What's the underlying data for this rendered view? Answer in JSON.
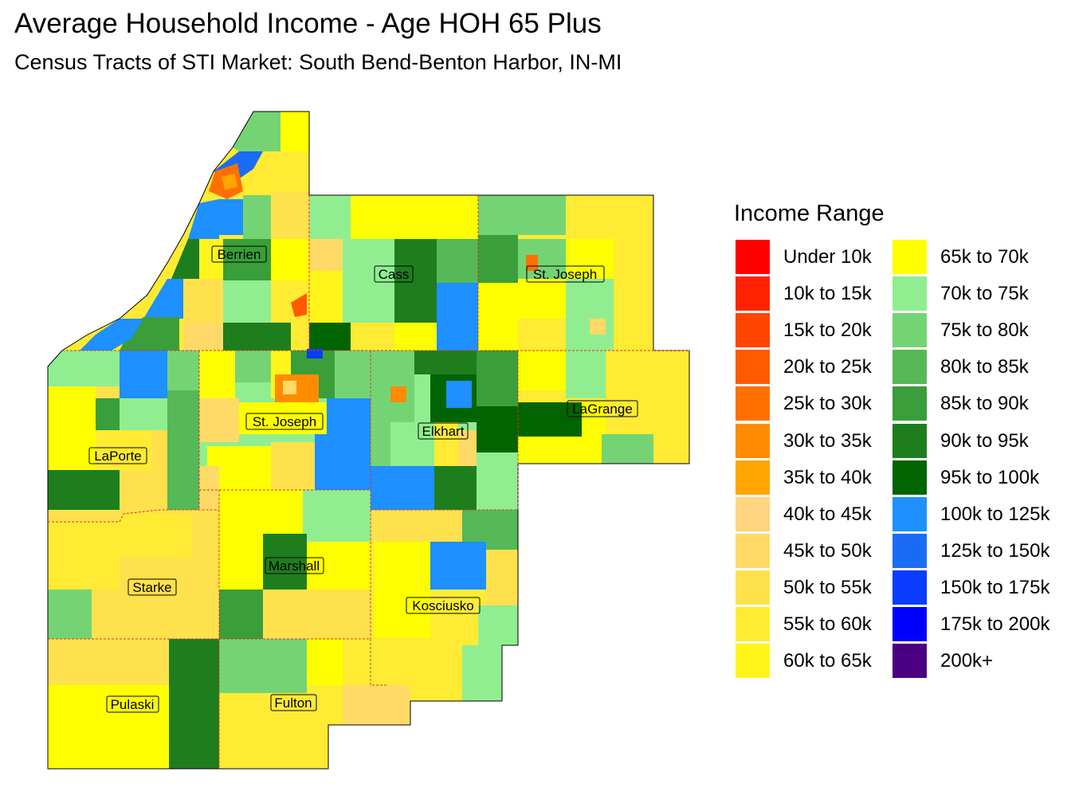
{
  "title": "Average Household Income - Age HOH 65 Plus",
  "subtitle": "Census Tracts of STI Market: South Bend-Benton Harbor, IN-MI",
  "legend": {
    "title": "Income Range",
    "items": [
      {
        "label": "Under 10k",
        "color": "#ff0000"
      },
      {
        "label": "10k to 15k",
        "color": "#ff2200"
      },
      {
        "label": "15k to 20k",
        "color": "#ff4400"
      },
      {
        "label": "20k to 25k",
        "color": "#ff5a00"
      },
      {
        "label": "25k to 30k",
        "color": "#ff7000"
      },
      {
        "label": "30k to 35k",
        "color": "#ff8c00"
      },
      {
        "label": "35k to 40k",
        "color": "#ffa500"
      },
      {
        "label": "40k to 45k",
        "color": "#ffd37f"
      },
      {
        "label": "45k to 50k",
        "color": "#ffda66"
      },
      {
        "label": "50k to 55k",
        "color": "#ffe14d"
      },
      {
        "label": "55k to 60k",
        "color": "#ffeb33"
      },
      {
        "label": "60k to 65k",
        "color": "#fff51a"
      },
      {
        "label": "65k to 70k",
        "color": "#ffff00"
      },
      {
        "label": "70k to 75k",
        "color": "#90ee90"
      },
      {
        "label": "75k to 80k",
        "color": "#74d474"
      },
      {
        "label": "80k to 85k",
        "color": "#56b856"
      },
      {
        "label": "85k to 90k",
        "color": "#3a9e3a"
      },
      {
        "label": "90k to 95k",
        "color": "#1e7e1e"
      },
      {
        "label": "95k to 100k",
        "color": "#006400"
      },
      {
        "label": "100k to 125k",
        "color": "#1e90ff"
      },
      {
        "label": "125k to 150k",
        "color": "#1a6cf5"
      },
      {
        "label": "150k to 175k",
        "color": "#0a3cff"
      },
      {
        "label": "175k to 200k",
        "color": "#0000ff"
      },
      {
        "label": "200k+",
        "color": "#4b0082"
      }
    ]
  },
  "counties": [
    {
      "name": "Berrien"
    },
    {
      "name": "Cass"
    },
    {
      "name": "St. Joseph"
    },
    {
      "name": "LaPorte"
    },
    {
      "name": "St. Joseph"
    },
    {
      "name": "Elkhart"
    },
    {
      "name": "LaGrange"
    },
    {
      "name": "Starke"
    },
    {
      "name": "Marshall"
    },
    {
      "name": "Kosciusko"
    },
    {
      "name": "Pulaski"
    },
    {
      "name": "Fulton"
    }
  ]
}
